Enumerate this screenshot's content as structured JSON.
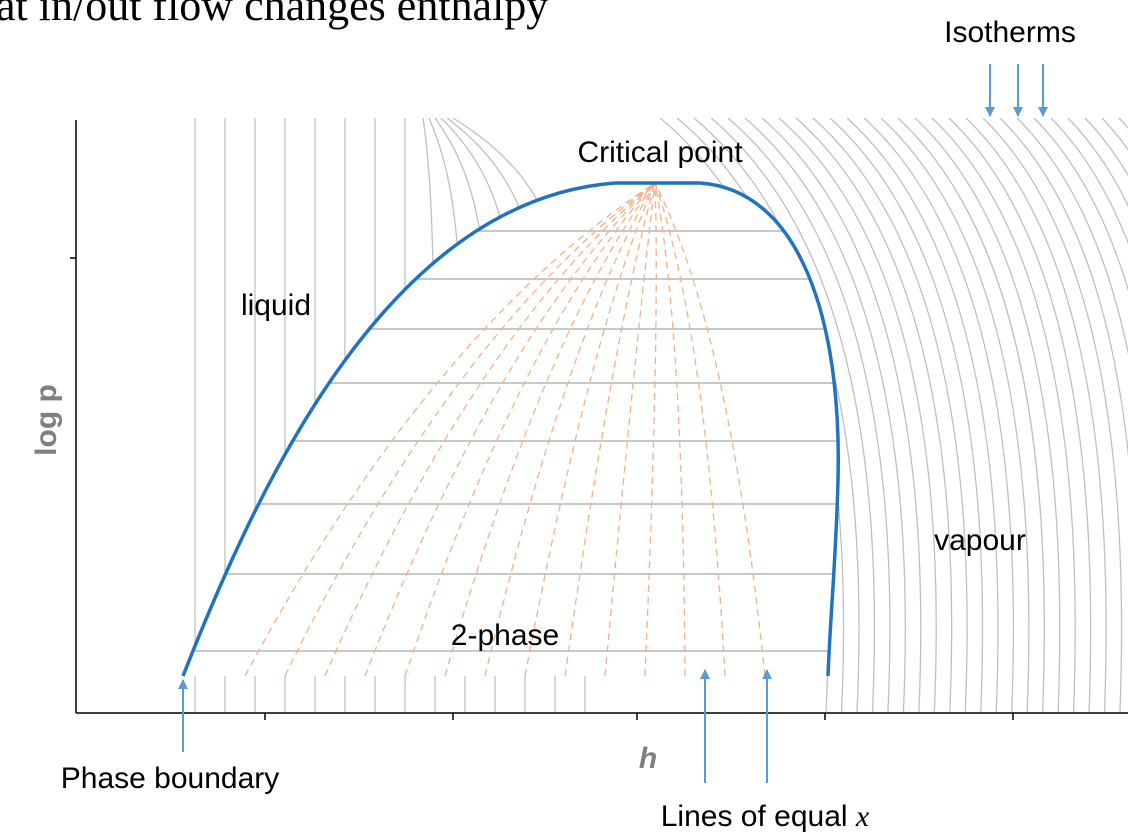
{
  "title": "at in/out flow changes enthalpy",
  "labels": {
    "isotherms": "Isotherms",
    "critical_point": "Critical point",
    "liquid": "liquid",
    "vapour": "vapour",
    "two_phase": "2-phase",
    "phase_boundary": "Phase boundary",
    "equal_x": "Lines of equal ",
    "equal_x_var": "x"
  },
  "axes": {
    "y_label": "log p",
    "x_label": "h"
  }
}
